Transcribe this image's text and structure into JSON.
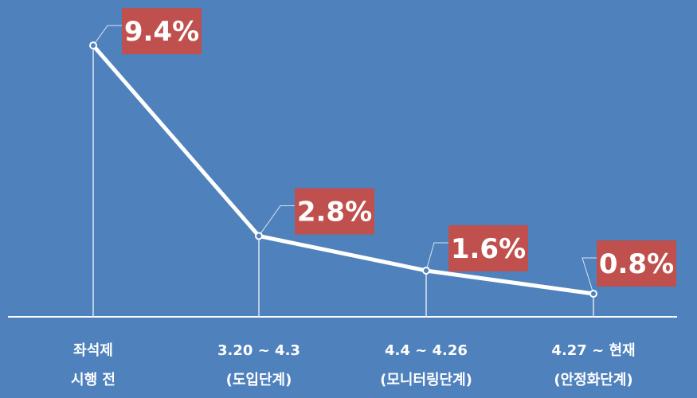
{
  "chart_data": {
    "type": "line",
    "categories": [
      [
        "좌석제",
        "시행 전"
      ],
      [
        "3.20 ~ 4.3",
        "(도입단계)"
      ],
      [
        "4.4 ~ 4.26",
        "(모니터링단계)"
      ],
      [
        "4.27 ~ 현재",
        "(안정화단계)"
      ]
    ],
    "values": [
      9.4,
      2.8,
      1.6,
      0.8
    ],
    "data_labels": [
      "9.4%",
      "2.8%",
      "1.6%",
      "0.8%"
    ],
    "ylim": [
      0,
      10.7
    ],
    "grid": false,
    "legend": "none"
  },
  "colors": {
    "background": "#4f81bd",
    "line": "#ffffff",
    "label_box": "#c0504d",
    "text": "#ffffff"
  }
}
